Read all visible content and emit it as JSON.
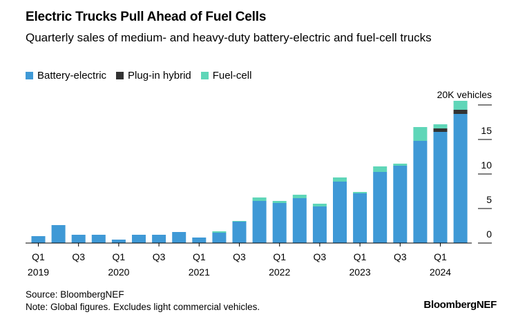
{
  "title": "Electric Trucks Pull Ahead of Fuel Cells",
  "subtitle": "Quarterly sales of medium- and heavy-duty battery-electric and fuel-cell trucks",
  "legend": [
    {
      "label": "Battery-electric",
      "color": "#3f99d6"
    },
    {
      "label": "Plug-in hybrid",
      "color": "#333333"
    },
    {
      "label": "Fuel-cell",
      "color": "#5fd6b8"
    }
  ],
  "source": "Source: BloombergNEF",
  "note": "Note: Global figures. Excludes light commercial vehicles.",
  "brand": "BloombergNEF",
  "chart_data": {
    "type": "bar",
    "stacked": true,
    "y_unit_label": "20K vehicles",
    "y_ticks": [
      "0",
      "5",
      "10",
      "15"
    ],
    "ylim": [
      0,
      20
    ],
    "grid": false,
    "legend_position": "top-left",
    "categories": [
      "Q1 2019",
      "Q2 2019",
      "Q3 2019",
      "Q4 2019",
      "Q1 2020",
      "Q2 2020",
      "Q3 2020",
      "Q4 2020",
      "Q1 2021",
      "Q2 2021",
      "Q3 2021",
      "Q4 2021",
      "Q1 2022",
      "Q2 2022",
      "Q3 2022",
      "Q4 2022",
      "Q1 2023",
      "Q2 2023",
      "Q3 2023",
      "Q4 2023",
      "Q1 2024",
      "Q2 2024"
    ],
    "x_tick_labels": [
      {
        "index": 0,
        "quarter": "Q1",
        "year": "2019"
      },
      {
        "index": 2,
        "quarter": "Q3",
        "year": ""
      },
      {
        "index": 4,
        "quarter": "Q1",
        "year": "2020"
      },
      {
        "index": 6,
        "quarter": "Q3",
        "year": ""
      },
      {
        "index": 8,
        "quarter": "Q1",
        "year": "2021"
      },
      {
        "index": 10,
        "quarter": "Q3",
        "year": ""
      },
      {
        "index": 12,
        "quarter": "Q1",
        "year": "2022"
      },
      {
        "index": 14,
        "quarter": "Q3",
        "year": ""
      },
      {
        "index": 16,
        "quarter": "Q1",
        "year": "2023"
      },
      {
        "index": 18,
        "quarter": "Q3",
        "year": ""
      },
      {
        "index": 20,
        "quarter": "Q1",
        "year": "2024"
      }
    ],
    "series": [
      {
        "name": "Battery-electric",
        "color": "#3f99d6",
        "values": [
          1.0,
          2.6,
          1.2,
          1.2,
          0.5,
          1.2,
          1.2,
          1.6,
          0.8,
          1.5,
          3.1,
          6.1,
          5.8,
          6.5,
          5.3,
          8.9,
          7.2,
          10.3,
          11.2,
          14.8,
          16.1,
          18.7
        ]
      },
      {
        "name": "Plug-in hybrid",
        "color": "#333333",
        "values": [
          0,
          0,
          0,
          0,
          0,
          0,
          0,
          0,
          0,
          0,
          0,
          0,
          0,
          0,
          0,
          0,
          0,
          0,
          0,
          0,
          0.5,
          0.6
        ]
      },
      {
        "name": "Fuel-cell",
        "color": "#5fd6b8",
        "values": [
          0,
          0,
          0,
          0,
          0,
          0,
          0,
          0,
          0,
          0.2,
          0.1,
          0.5,
          0.3,
          0.5,
          0.4,
          0.6,
          0.2,
          0.8,
          0.3,
          2.0,
          0.6,
          1.3
        ]
      }
    ]
  }
}
